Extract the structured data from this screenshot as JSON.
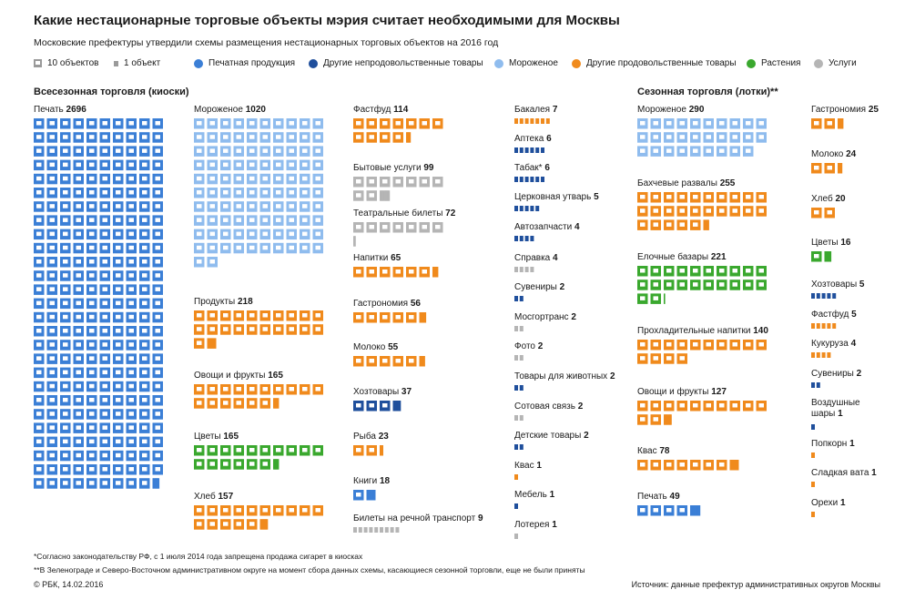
{
  "header": {
    "title": "Какие нестационарные торговые объекты мэрия считает необходимыми для Москвы",
    "subtitle": "Московские префектуры утвердили схемы размещения нестационарных торговых объектов на 2016 год"
  },
  "legend": {
    "unit_big": "10 объектов",
    "unit_small": "1 объект",
    "categories": [
      {
        "key": "print",
        "label": "Печатная продукция",
        "color": "#3b7fd6"
      },
      {
        "key": "nonfood",
        "label": "Другие непродовольственные товары",
        "color": "#1f4f9c"
      },
      {
        "key": "icecream",
        "label": "Мороженое",
        "color": "#8fbcee"
      },
      {
        "key": "food",
        "label": "Другие продовольственные товары",
        "color": "#f08a1c"
      },
      {
        "key": "plants",
        "label": "Растения",
        "color": "#3aa82e"
      },
      {
        "key": "services",
        "label": "Услуги",
        "color": "#b5b5b5"
      }
    ]
  },
  "sections": {
    "allseason": "Всесезонная торговля (киоски)",
    "seasonal": "Сезонная торговля (лотки)**"
  },
  "chart_data": {
    "type": "pictogram",
    "unit_big": 10,
    "unit_small": 1,
    "groups": [
      {
        "title": "Всесезонная торговля (киоски)",
        "items": [
          {
            "label": "Печать",
            "value": 2696,
            "category": "print"
          },
          {
            "label": "Мороженое",
            "value": 1020,
            "category": "icecream"
          },
          {
            "label": "Продукты",
            "value": 218,
            "category": "food"
          },
          {
            "label": "Овощи и фрукты",
            "value": 165,
            "category": "food"
          },
          {
            "label": "Цветы",
            "value": 165,
            "category": "plants"
          },
          {
            "label": "Хлеб",
            "value": 157,
            "category": "food"
          },
          {
            "label": "Фастфуд",
            "value": 114,
            "category": "food"
          },
          {
            "label": "Бытовые услуги",
            "value": 99,
            "category": "services"
          },
          {
            "label": "Театральные билеты",
            "value": 72,
            "category": "services"
          },
          {
            "label": "Напитки",
            "value": 65,
            "category": "food"
          },
          {
            "label": "Гастрономия",
            "value": 56,
            "category": "food"
          },
          {
            "label": "Молоко",
            "value": 55,
            "category": "food"
          },
          {
            "label": "Хозтовары",
            "value": 37,
            "category": "nonfood"
          },
          {
            "label": "Рыба",
            "value": 23,
            "category": "food"
          },
          {
            "label": "Книги",
            "value": 18,
            "category": "print"
          },
          {
            "label": "Билеты на речной транспорт",
            "value": 9,
            "category": "services"
          },
          {
            "label": "Бакалея",
            "value": 7,
            "category": "food"
          },
          {
            "label": "Аптека",
            "value": 6,
            "category": "nonfood"
          },
          {
            "label": "Табак*",
            "value": 6,
            "category": "nonfood"
          },
          {
            "label": "Церковная утварь",
            "value": 5,
            "category": "nonfood"
          },
          {
            "label": "Автозапчасти",
            "value": 4,
            "category": "nonfood"
          },
          {
            "label": "Справка",
            "value": 4,
            "category": "services"
          },
          {
            "label": "Сувениры",
            "value": 2,
            "category": "nonfood"
          },
          {
            "label": "Мосгортранс",
            "value": 2,
            "category": "services"
          },
          {
            "label": "Фото",
            "value": 2,
            "category": "services"
          },
          {
            "label": "Товары для животных",
            "value": 2,
            "category": "nonfood"
          },
          {
            "label": "Сотовая связь",
            "value": 2,
            "category": "services"
          },
          {
            "label": "Детские товары",
            "value": 2,
            "category": "nonfood"
          },
          {
            "label": "Квас",
            "value": 1,
            "category": "food"
          },
          {
            "label": "Мебель",
            "value": 1,
            "category": "nonfood"
          },
          {
            "label": "Лотерея",
            "value": 1,
            "category": "services"
          }
        ]
      },
      {
        "title": "Сезонная торговля (лотки)**",
        "items": [
          {
            "label": "Мороженое",
            "value": 290,
            "category": "icecream"
          },
          {
            "label": "Бахчевые развалы",
            "value": 255,
            "category": "food"
          },
          {
            "label": "Елочные базары",
            "value": 221,
            "category": "plants"
          },
          {
            "label": "Прохладительные напитки",
            "value": 140,
            "category": "food"
          },
          {
            "label": "Овощи и фрукты",
            "value": 127,
            "category": "food"
          },
          {
            "label": "Квас",
            "value": 78,
            "category": "food"
          },
          {
            "label": "Печать",
            "value": 49,
            "category": "print"
          },
          {
            "label": "Гастрономия",
            "value": 25,
            "category": "food"
          },
          {
            "label": "Молоко",
            "value": 24,
            "category": "food"
          },
          {
            "label": "Хлеб",
            "value": 20,
            "category": "food"
          },
          {
            "label": "Цветы",
            "value": 16,
            "category": "plants"
          },
          {
            "label": "Хозтовары",
            "value": 5,
            "category": "nonfood"
          },
          {
            "label": "Фастфуд",
            "value": 5,
            "category": "food"
          },
          {
            "label": "Кукуруза",
            "value": 4,
            "category": "food"
          },
          {
            "label": "Сувениры",
            "value": 2,
            "category": "nonfood"
          },
          {
            "label": "Воздушные шары",
            "value": 1,
            "category": "nonfood"
          },
          {
            "label": "Попкорн",
            "value": 1,
            "category": "food"
          },
          {
            "label": "Сладкая вата",
            "value": 1,
            "category": "food"
          },
          {
            "label": "Орехи",
            "value": 1,
            "category": "food"
          }
        ]
      }
    ]
  },
  "footer": {
    "note1": "*Согласно законодательству РФ, с 1 июля 2014 года запрещена продажа сигарет в киосках",
    "note2": "**В Зеленограде и Северо-Восточном административном округе на момент сбора данных схемы, касающиеся сезонной торговли, еще не были приняты",
    "copyright": "© РБК, 14.02.2016",
    "source": "Источник: данные префектур административных округов Москвы"
  }
}
